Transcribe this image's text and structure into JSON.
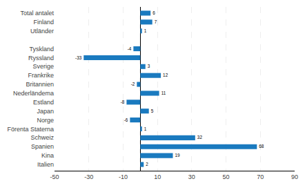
{
  "chart_data": {
    "type": "bar",
    "orientation": "horizontal",
    "categories": [
      "Italien",
      "Kina",
      "Spanien",
      "Schweiz",
      "Förenta Staterna",
      "Norge",
      "Japan",
      "Estland",
      "Nederländema",
      "Britannien",
      "Frankrike",
      "Sverige",
      "Ryssland",
      "Tyskland",
      null,
      "Utländer",
      "Finland",
      "Total antalet"
    ],
    "values": [
      2,
      19,
      68,
      32,
      1,
      -6,
      5,
      -8,
      11,
      -2,
      12,
      3,
      -33,
      -4,
      null,
      1,
      7,
      6
    ],
    "color": "#1a7abf",
    "xlim": [
      -50,
      90
    ],
    "xticks": [
      -50,
      -30,
      -10,
      10,
      30,
      50,
      70,
      90
    ],
    "grid": true,
    "data_labels": true
  }
}
